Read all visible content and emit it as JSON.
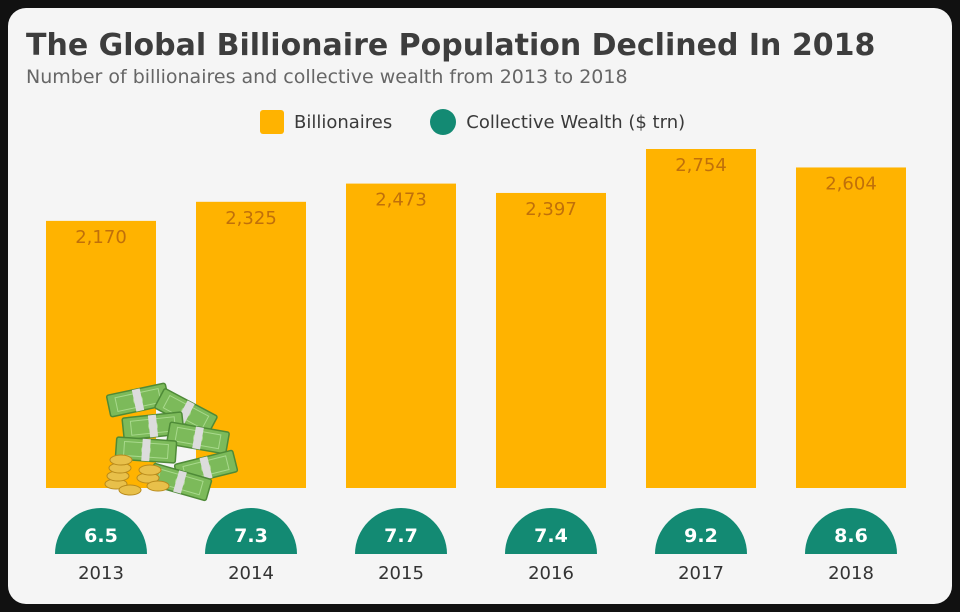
{
  "header": {
    "title": "The Global Billionaire Population Declined In 2018",
    "subtitle": "Number of billionaires and collective wealth from 2013 to 2018"
  },
  "legend": {
    "billionaires_label": "Billionaires",
    "wealth_label": "Collective Wealth ($ trn)"
  },
  "colors": {
    "bar": "#FFB300",
    "bar_label": "#C0700A",
    "wealth": "#138a73",
    "wealth_label": "#ffffff",
    "year_label": "#333333",
    "money_green": "#7cba5a",
    "coin_gold": "#e8c04a"
  },
  "decoration": {
    "icon": "cash-stack-icon"
  },
  "chart_data": {
    "type": "bar",
    "title": "The Global Billionaire Population Declined In 2018",
    "subtitle": "Number of billionaires and collective wealth from 2013 to 2018",
    "categories": [
      "2013",
      "2014",
      "2015",
      "2016",
      "2017",
      "2018"
    ],
    "series": [
      {
        "name": "Billionaires",
        "values": [
          2170,
          2325,
          2473,
          2397,
          2754,
          2604
        ],
        "labels": [
          "2,170",
          "2,325",
          "2,473",
          "2,397",
          "2,754",
          "2,604"
        ]
      },
      {
        "name": "Collective Wealth ($ trn)",
        "values": [
          6.5,
          7.3,
          7.7,
          7.4,
          9.2,
          8.6
        ],
        "labels": [
          "6.5",
          "7.3",
          "7.7",
          "7.4",
          "9.2",
          "8.6"
        ]
      }
    ],
    "ylim": [
      0,
      2754
    ],
    "grid": false,
    "legend_position": "top-center"
  }
}
